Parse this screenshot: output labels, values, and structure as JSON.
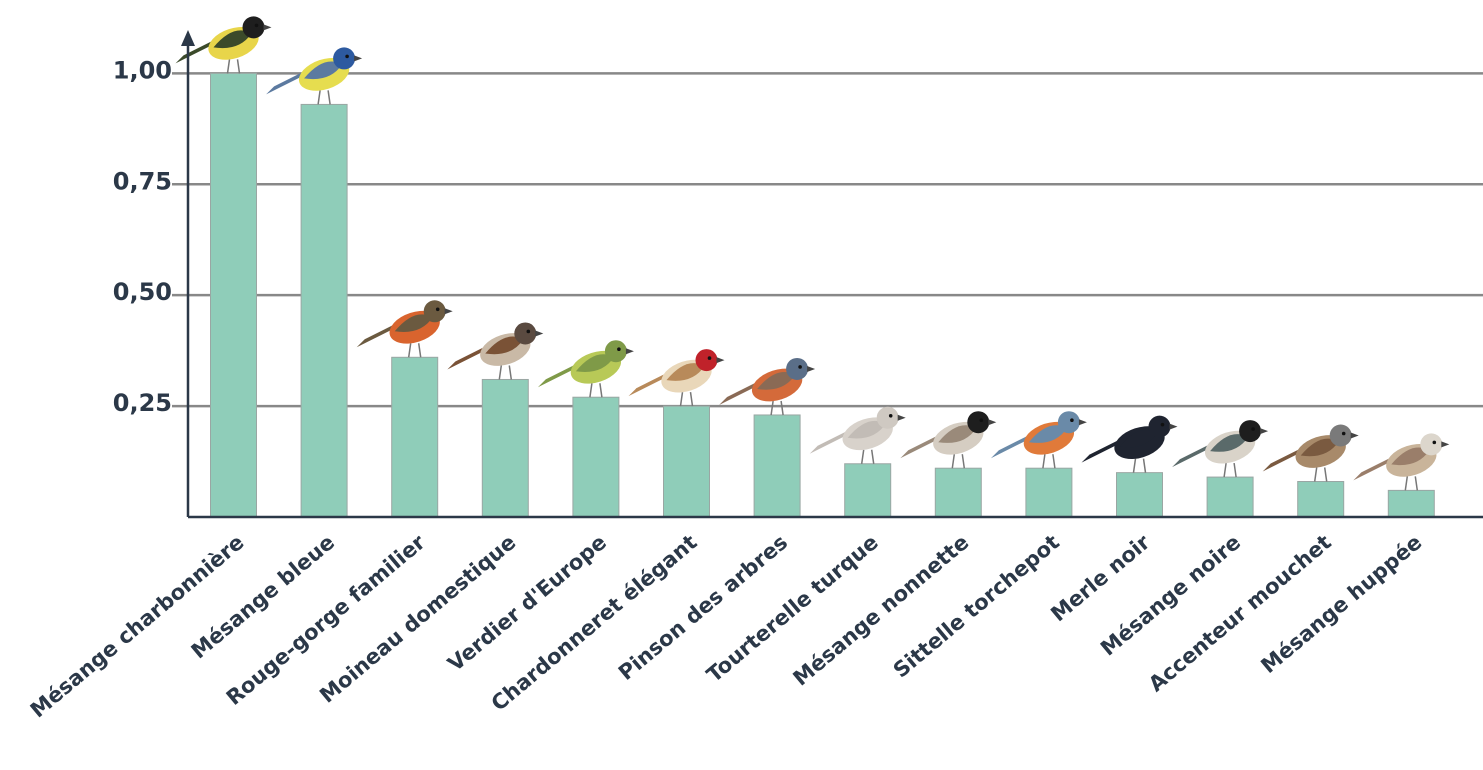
{
  "chart_data": {
    "type": "bar",
    "categories": [
      "Mésange charbonnière",
      "Mésange bleue",
      "Rouge-gorge familier",
      "Moineau domestique",
      "Verdier d'Europe",
      "Chardonneret élégant",
      "Pinson des arbres",
      "Tourterelle turque",
      "Mésange nonnette",
      "Sittelle torchepot",
      "Merle noir",
      "Mésange noire",
      "Accenteur mouchet",
      "Mésange huppée"
    ],
    "values": [
      1.0,
      0.93,
      0.36,
      0.31,
      0.27,
      0.25,
      0.23,
      0.12,
      0.11,
      0.11,
      0.1,
      0.09,
      0.08,
      0.06
    ],
    "color": "#8fcdb9",
    "ylim": [
      0,
      1.1
    ],
    "yticks": [
      {
        "value": 0.25,
        "label": "0,25"
      },
      {
        "value": 0.5,
        "label": "0,50"
      },
      {
        "value": 0.75,
        "label": "0,75"
      },
      {
        "value": 1.0,
        "label": "1,00"
      }
    ],
    "grid": true
  }
}
